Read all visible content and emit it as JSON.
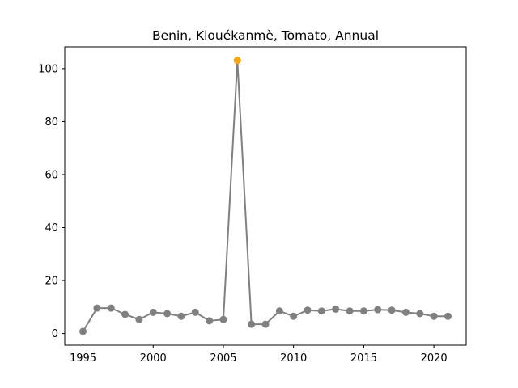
{
  "chart_data": {
    "type": "line",
    "title": "Benin, Klouékanmè, Tomato, Annual",
    "xlabel": "",
    "ylabel": "",
    "xlim": [
      1993.7,
      2022.3
    ],
    "ylim": [
      -4.4,
      108.2
    ],
    "xticks": [
      1995,
      2000,
      2005,
      2010,
      2015,
      2020
    ],
    "yticks": [
      0,
      20,
      40,
      60,
      80,
      100
    ],
    "grid": false,
    "legend": "none",
    "line_color": "#808080",
    "marker_color": "#808080",
    "highlight_color": "#FFA500",
    "series": [
      {
        "x": [
          1995,
          1996,
          1997,
          1998,
          1999,
          2000,
          2001,
          2002,
          2003,
          2004,
          2005,
          2006,
          2007,
          2008,
          2009,
          2010,
          2011,
          2012,
          2013,
          2014,
          2015,
          2016,
          2017,
          2018,
          2019,
          2020,
          2021
        ],
        "values": [
          0.8,
          9.6,
          9.6,
          7.2,
          5.3,
          8.0,
          7.5,
          6.5,
          8.0,
          4.8,
          5.3,
          103.1,
          3.5,
          3.5,
          8.5,
          6.5,
          8.8,
          8.5,
          9.2,
          8.5,
          8.5,
          9.0,
          8.8,
          8.0,
          7.5,
          6.5,
          6.5
        ],
        "highlight_index": 11
      }
    ]
  }
}
